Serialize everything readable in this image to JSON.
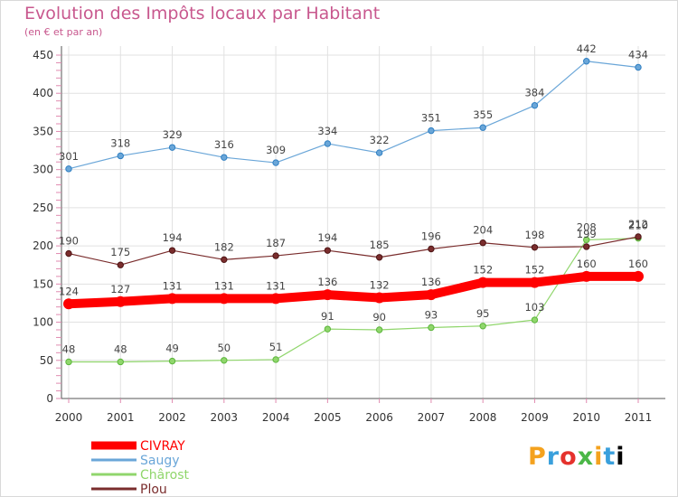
{
  "chart_data": {
    "type": "line",
    "title": "Evolution des Impôts locaux par Habitant",
    "subtitle": "(en € et par an)",
    "xlabel": "",
    "ylabel": "",
    "x": [
      "2000",
      "2001",
      "2002",
      "2003",
      "2004",
      "2005",
      "2006",
      "2007",
      "2008",
      "2009",
      "2010",
      "2011"
    ],
    "ylim": [
      0,
      450
    ],
    "yticks": [
      0,
      50,
      100,
      150,
      200,
      250,
      300,
      350,
      400,
      450
    ],
    "grid": true,
    "legend_position": "bottom-left",
    "series": [
      {
        "name": "CIVRAY",
        "color": "#ff0000",
        "values": [
          124,
          127,
          131,
          131,
          131,
          136,
          132,
          136,
          152,
          152,
          160,
          160
        ]
      },
      {
        "name": "Saugy",
        "color": "#6aa6d8",
        "values": [
          301,
          318,
          329,
          316,
          309,
          334,
          322,
          351,
          355,
          384,
          442,
          434
        ]
      },
      {
        "name": "Chârost",
        "color": "#90d66c",
        "values": [
          48,
          48,
          49,
          50,
          51,
          91,
          90,
          93,
          95,
          103,
          208,
          210
        ]
      },
      {
        "name": "Plou",
        "color": "#7a2d2d",
        "values": [
          190,
          175,
          194,
          182,
          187,
          194,
          185,
          196,
          204,
          198,
          199,
          212
        ]
      }
    ]
  },
  "logo_text": "Proxiti"
}
